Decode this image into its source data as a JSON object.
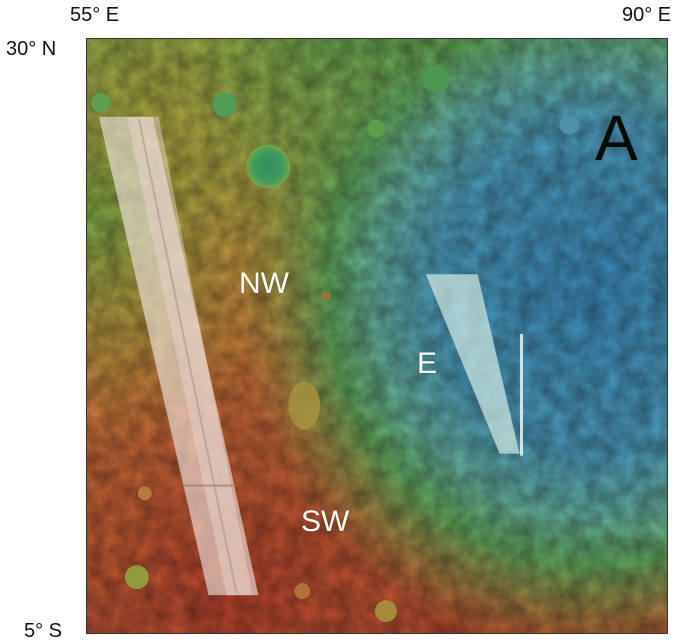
{
  "map": {
    "axes": {
      "top_left_lon": "55° E",
      "top_right_lon": "90° E",
      "top_lat": "30° N",
      "bottom_lat": "5° S"
    },
    "panel_label": "A",
    "regions": [
      {
        "id": "nw",
        "label": "NW"
      },
      {
        "id": "e",
        "label": "E"
      },
      {
        "id": "sw",
        "label": "SW"
      }
    ],
    "colors": {
      "lowland_blue": "#3f8db8",
      "basin_teal": "#5ba7b1",
      "rim_green": "#3d9a5c",
      "highland_yellow": "#b9a53c",
      "highland_orange": "#c9703a",
      "highland_red": "#b8442e",
      "track_overlay": "#f2e6e0",
      "e_wedge_overlay": "#d9f0e8"
    }
  }
}
